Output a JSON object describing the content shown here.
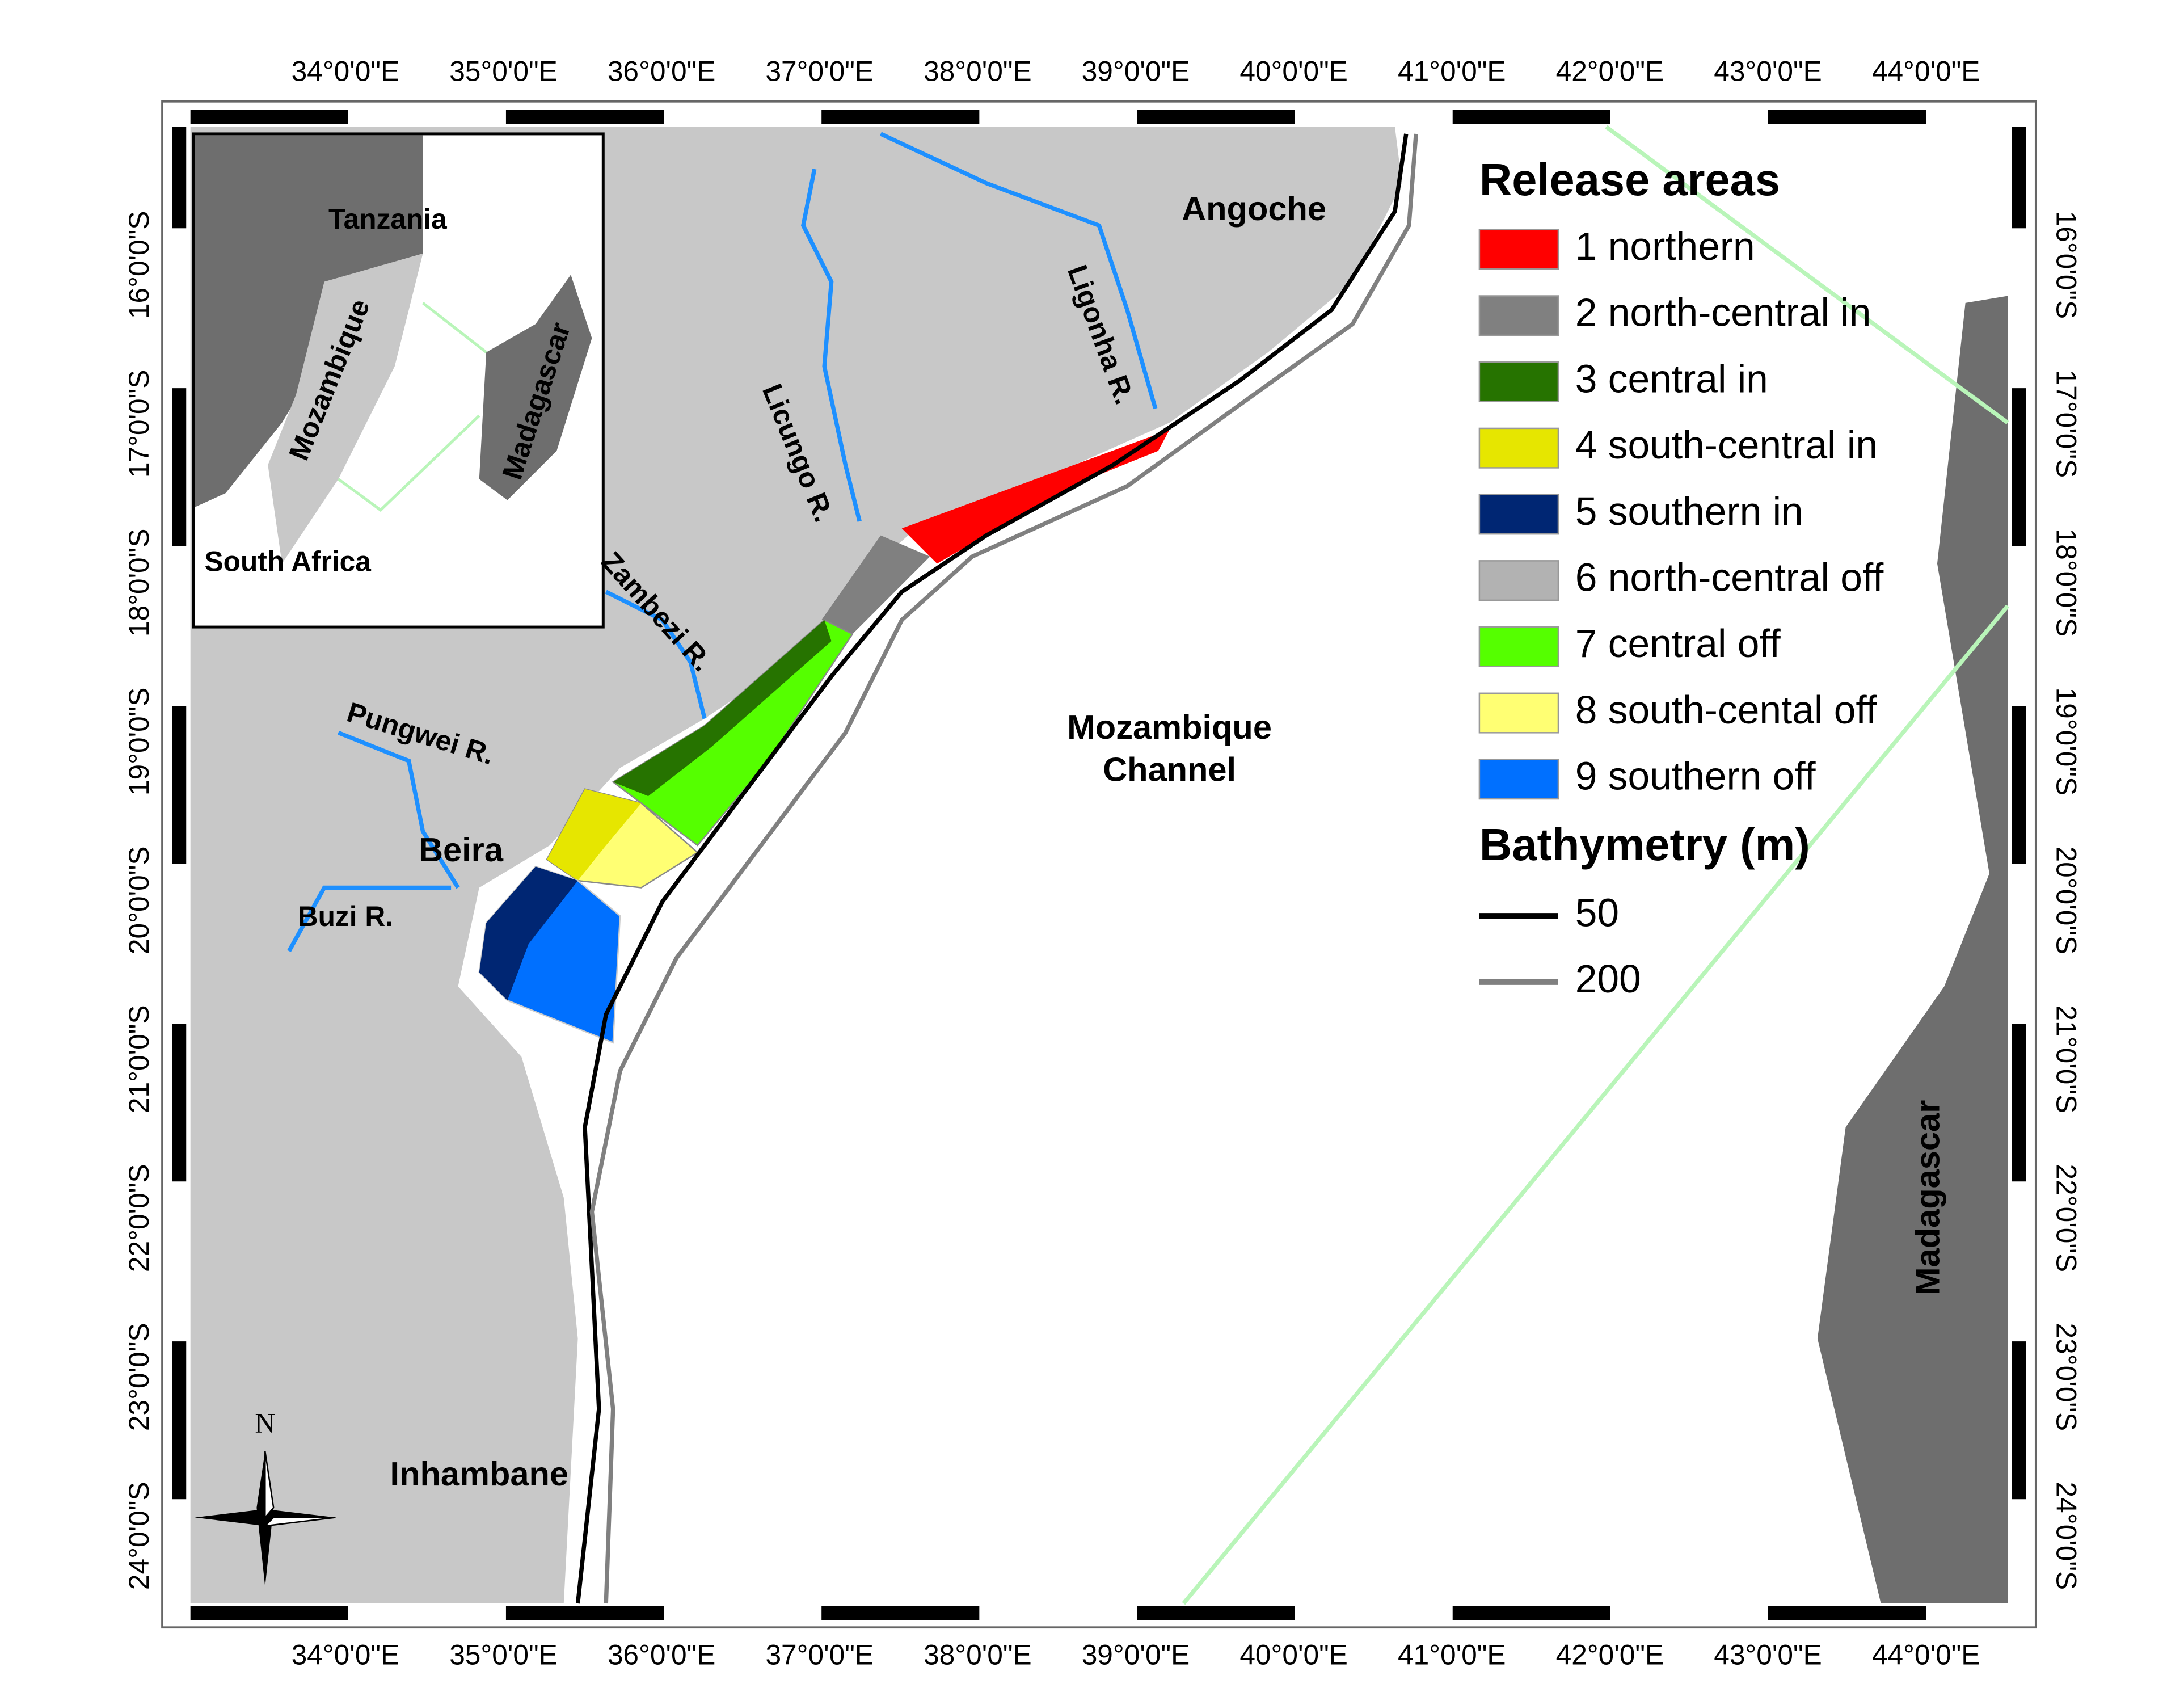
{
  "lon_labels": [
    "34°0'0\"E",
    "35°0'0\"E",
    "36°0'0\"E",
    "37°0'0\"E",
    "38°0'0\"E",
    "39°0'0\"E",
    "40°0'0\"E",
    "41°0'0\"E",
    "42°0'0\"E",
    "43°0'0\"E",
    "44°0'0\"E"
  ],
  "lat_labels": [
    "16°0'0\"S",
    "17°0'0\"S",
    "18°0'0\"S",
    "19°0'0\"S",
    "20°0'0\"S",
    "21°0'0\"S",
    "22°0'0\"S",
    "23°0'0\"S",
    "24°0'0\"S"
  ],
  "places": [
    "Angoche",
    "Beira",
    "Inhambane",
    "Madagascar"
  ],
  "sea_label": [
    "Mozambique",
    "Channel"
  ],
  "rivers": [
    "Licungo R.",
    "Ligonha R.",
    "Zambezi R.",
    "Pungwei R.",
    "Buzi R."
  ],
  "inset_labels": [
    "Tanzania",
    "Mozambique",
    "Madagascar",
    "South Africa"
  ],
  "north_label": "N",
  "release_areas": {
    "title": "Release areas",
    "items": [
      {
        "label": "1 northern",
        "color": "#ff0000"
      },
      {
        "label": "2 north-central in",
        "color": "#808080"
      },
      {
        "label": "3 central in",
        "color": "#267300"
      },
      {
        "label": "4 south-central in",
        "color": "#e6e600"
      },
      {
        "label": "5 southern in",
        "color": "#002673"
      },
      {
        "label": "6 north-central off",
        "color": "#b2b2b2"
      },
      {
        "label": "7 central off",
        "color": "#55ff00"
      },
      {
        "label": "8 south-cental off",
        "color": "#ffff73"
      },
      {
        "label": "9 southern off",
        "color": "#0070ff"
      }
    ]
  },
  "bathymetry": {
    "title": "Bathymetry (m)",
    "items": [
      {
        "label": "50",
        "color": "#000000"
      },
      {
        "label": "200",
        "color": "#808080"
      }
    ]
  }
}
